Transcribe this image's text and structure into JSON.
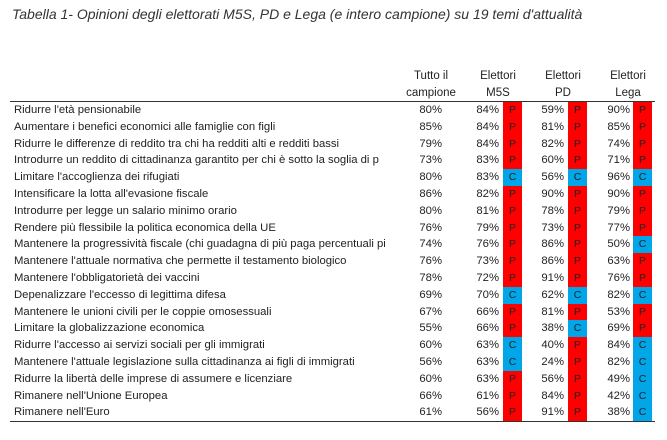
{
  "title": "Tabella 1- Opinioni degli elettorati M5S, PD e Lega (e intero campione) su 19 temi d'attualità",
  "headers": {
    "total": [
      "Tutto il",
      "campione"
    ],
    "m5s": [
      "Elettori",
      "M5S"
    ],
    "pd": [
      "Elettori",
      "PD"
    ],
    "lega": [
      "Elettori",
      "Lega"
    ]
  },
  "colors": {
    "P": "#ff0000",
    "C": "#00a6e8"
  },
  "rows": [
    {
      "label": "Ridurre l'età pensionabile",
      "total": "80%",
      "m5s": "84%",
      "m5s_m": "P",
      "pd": "59%",
      "pd_m": "P",
      "lega": "90%",
      "lega_m": "P"
    },
    {
      "label": "Aumentare i benefici economici alle famiglie con figli",
      "total": "85%",
      "m5s": "84%",
      "m5s_m": "P",
      "pd": "81%",
      "pd_m": "P",
      "lega": "85%",
      "lega_m": "P"
    },
    {
      "label": "Ridurre le differenze di reddito tra chi ha redditi alti e redditi bassi",
      "total": "79%",
      "m5s": "84%",
      "m5s_m": "P",
      "pd": "82%",
      "pd_m": "P",
      "lega": "74%",
      "lega_m": "P"
    },
    {
      "label": "Introdurre un reddito di cittadinanza garantito per chi è sotto la soglia di p",
      "total": "73%",
      "m5s": "83%",
      "m5s_m": "P",
      "pd": "60%",
      "pd_m": "P",
      "lega": "71%",
      "lega_m": "P"
    },
    {
      "label": "Limitare l'accoglienza dei rifugiati",
      "total": "80%",
      "m5s": "83%",
      "m5s_m": "C",
      "pd": "56%",
      "pd_m": "C",
      "lega": "96%",
      "lega_m": "C"
    },
    {
      "label": "Intensificare la lotta all'evasione fiscale",
      "total": "86%",
      "m5s": "82%",
      "m5s_m": "P",
      "pd": "90%",
      "pd_m": "P",
      "lega": "90%",
      "lega_m": "P"
    },
    {
      "label": "Introdurre per legge un salario minimo orario",
      "total": "80%",
      "m5s": "81%",
      "m5s_m": "P",
      "pd": "78%",
      "pd_m": "P",
      "lega": "79%",
      "lega_m": "P"
    },
    {
      "label": "Rendere più flessibile la politica economica della UE",
      "total": "76%",
      "m5s": "79%",
      "m5s_m": "P",
      "pd": "73%",
      "pd_m": "P",
      "lega": "77%",
      "lega_m": "P"
    },
    {
      "label": "Mantenere la progressività fiscale (chi guadagna di più paga percentuali pi",
      "total": "74%",
      "m5s": "76%",
      "m5s_m": "P",
      "pd": "86%",
      "pd_m": "P",
      "lega": "50%",
      "lega_m": "C"
    },
    {
      "label": "Mantenere l'attuale normativa che permette il testamento biologico",
      "total": "76%",
      "m5s": "73%",
      "m5s_m": "P",
      "pd": "86%",
      "pd_m": "P",
      "lega": "63%",
      "lega_m": "P"
    },
    {
      "label": "Mantenere l'obbligatorietà dei vaccini",
      "total": "78%",
      "m5s": "72%",
      "m5s_m": "P",
      "pd": "91%",
      "pd_m": "P",
      "lega": "76%",
      "lega_m": "P"
    },
    {
      "label": "Depenalizzare l'eccesso di legittima difesa",
      "total": "69%",
      "m5s": "70%",
      "m5s_m": "C",
      "pd": "62%",
      "pd_m": "C",
      "lega": "82%",
      "lega_m": "C"
    },
    {
      "label": "Mantenere le unioni civili per le coppie omosessuali",
      "total": "67%",
      "m5s": "66%",
      "m5s_m": "P",
      "pd": "81%",
      "pd_m": "P",
      "lega": "53%",
      "lega_m": "P"
    },
    {
      "label": "Limitare la globalizzazione economica",
      "total": "55%",
      "m5s": "66%",
      "m5s_m": "P",
      "pd": "38%",
      "pd_m": "C",
      "lega": "69%",
      "lega_m": "P"
    },
    {
      "label": "Ridurre l'accesso ai servizi sociali per gli immigrati",
      "total": "60%",
      "m5s": "63%",
      "m5s_m": "C",
      "pd": "40%",
      "pd_m": "P",
      "lega": "84%",
      "lega_m": "C"
    },
    {
      "label": "Mantenere l'attuale legislazione sulla cittadinanza ai figli di immigrati",
      "total": "56%",
      "m5s": "63%",
      "m5s_m": "C",
      "pd": "24%",
      "pd_m": "P",
      "lega": "82%",
      "lega_m": "C"
    },
    {
      "label": "Ridurre la libertà delle imprese di assumere e licenziare",
      "total": "60%",
      "m5s": "63%",
      "m5s_m": "P",
      "pd": "56%",
      "pd_m": "P",
      "lega": "49%",
      "lega_m": "C"
    },
    {
      "label": "Rimanere nell'Unione Europea",
      "total": "66%",
      "m5s": "61%",
      "m5s_m": "P",
      "pd": "84%",
      "pd_m": "P",
      "lega": "42%",
      "lega_m": "C"
    },
    {
      "label": "Rimanere nell'Euro",
      "total": "61%",
      "m5s": "56%",
      "m5s_m": "P",
      "pd": "91%",
      "pd_m": "P",
      "lega": "38%",
      "lega_m": "C"
    }
  ]
}
